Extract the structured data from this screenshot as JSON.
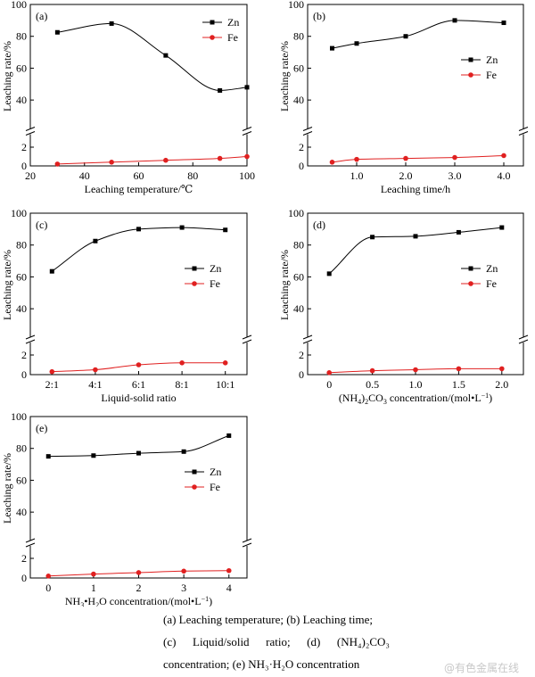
{
  "chart_data": [
    {
      "type": "line",
      "panel_label": "(a)",
      "xlabel": "Leaching temperature/℃",
      "ylabel": "Leaching rate/%",
      "xlim": [
        20,
        100
      ],
      "x_ticks": [
        20,
        40,
        60,
        80,
        100
      ],
      "x_tick_labels": [
        "20",
        "40",
        "60",
        "80",
        "100"
      ],
      "y_lower_ticks": [
        0,
        2
      ],
      "y_upper_ticks": [
        40,
        60,
        80,
        100
      ],
      "y_upper_range": [
        30,
        100
      ],
      "legend_position": "top-right",
      "series": [
        {
          "name": "Zn",
          "color": "#000000",
          "marker": "square",
          "x": [
            30,
            50,
            70,
            90,
            100
          ],
          "y": [
            82.5,
            88,
            68,
            46,
            48
          ]
        },
        {
          "name": "Fe",
          "color": "#e02020",
          "marker": "circle",
          "x": [
            30,
            50,
            70,
            90,
            100
          ],
          "y": [
            0.2,
            0.4,
            0.6,
            0.8,
            1.0
          ]
        }
      ]
    },
    {
      "type": "line",
      "panel_label": "(b)",
      "xlabel": "Leaching time/h",
      "ylabel": "Leaching rate/%",
      "xlim": [
        0,
        4.4
      ],
      "x_ticks": [
        1,
        2,
        3,
        4
      ],
      "x_tick_labels": [
        "1.0",
        "2.0",
        "3.0",
        "4.0"
      ],
      "y_lower_ticks": [
        0,
        2
      ],
      "y_upper_ticks": [
        40,
        60,
        80,
        100
      ],
      "y_upper_range": [
        30,
        100
      ],
      "legend_position": "right",
      "series": [
        {
          "name": "Zn",
          "color": "#000000",
          "marker": "square",
          "x": [
            0.5,
            1,
            2,
            3,
            4
          ],
          "y": [
            72.5,
            75.5,
            80,
            90,
            88.5
          ]
        },
        {
          "name": "Fe",
          "color": "#e02020",
          "marker": "circle",
          "x": [
            0.5,
            1,
            2,
            3,
            4
          ],
          "y": [
            0.4,
            0.7,
            0.8,
            0.9,
            1.1
          ]
        }
      ]
    },
    {
      "type": "line",
      "panel_label": "(c)",
      "xlabel": "Liquid-solid ratio",
      "ylabel": "Leaching rate/%",
      "xlim": [
        0.5,
        5.5
      ],
      "x_ticks": [
        1,
        2,
        3,
        4,
        5
      ],
      "x_tick_labels": [
        "2:1",
        "4:1",
        "6:1",
        "8:1",
        "10:1"
      ],
      "y_lower_ticks": [
        0,
        2
      ],
      "y_upper_ticks": [
        40,
        60,
        80,
        100
      ],
      "y_upper_range": [
        30,
        100
      ],
      "legend_position": "right",
      "series": [
        {
          "name": "Zn",
          "color": "#000000",
          "marker": "square",
          "x": [
            1,
            2,
            3,
            4,
            5
          ],
          "y": [
            63.5,
            82.5,
            90,
            91,
            89.5
          ]
        },
        {
          "name": "Fe",
          "color": "#e02020",
          "marker": "circle",
          "x": [
            1,
            2,
            3,
            4,
            5
          ],
          "y": [
            0.3,
            0.5,
            1.0,
            1.2,
            1.2
          ]
        }
      ]
    },
    {
      "type": "line",
      "panel_label": "(d)",
      "xlabel_parts": [
        "(NH",
        "4",
        ")",
        "2",
        "CO",
        "3",
        " concentration/(mol•L",
        "−1",
        ")"
      ],
      "ylabel": "Leaching rate/%",
      "xlim": [
        -0.25,
        2.25
      ],
      "x_ticks": [
        0,
        0.5,
        1,
        1.5,
        2
      ],
      "x_tick_labels": [
        "0",
        "0.5",
        "1.0",
        "1.5",
        "2.0"
      ],
      "y_lower_ticks": [
        0,
        2
      ],
      "y_upper_ticks": [
        40,
        60,
        80,
        100
      ],
      "y_upper_range": [
        30,
        100
      ],
      "legend_position": "right",
      "series": [
        {
          "name": "Zn",
          "color": "#000000",
          "marker": "square",
          "x": [
            0,
            0.5,
            1,
            1.5,
            2
          ],
          "y": [
            62,
            85,
            85.5,
            88,
            91
          ]
        },
        {
          "name": "Fe",
          "color": "#e02020",
          "marker": "circle",
          "x": [
            0,
            0.5,
            1,
            1.5,
            2
          ],
          "y": [
            0.2,
            0.4,
            0.5,
            0.6,
            0.6
          ]
        }
      ]
    },
    {
      "type": "line",
      "panel_label": "(e)",
      "xlabel_parts": [
        "NH",
        "3",
        "•H",
        "2",
        "O concentration/(mol•L",
        "−1",
        ")"
      ],
      "ylabel": "Leaching rate/%",
      "xlim": [
        -0.4,
        4.4
      ],
      "x_ticks": [
        0,
        1,
        2,
        3,
        4
      ],
      "x_tick_labels": [
        "0",
        "1",
        "2",
        "3",
        "4"
      ],
      "y_lower_ticks": [
        0,
        2
      ],
      "y_upper_ticks": [
        40,
        60,
        80,
        100
      ],
      "y_upper_range": [
        30,
        100
      ],
      "legend_position": "right",
      "series": [
        {
          "name": "Zn",
          "color": "#000000",
          "marker": "square",
          "x": [
            0,
            1,
            2,
            3,
            4
          ],
          "y": [
            75,
            75.5,
            77,
            78,
            88
          ]
        },
        {
          "name": "Fe",
          "color": "#e02020",
          "marker": "circle",
          "x": [
            0,
            1,
            2,
            3,
            4
          ],
          "y": [
            0.2,
            0.4,
            0.55,
            0.7,
            0.75
          ]
        }
      ]
    }
  ],
  "caption": {
    "line1": "(a) Leaching temperature; (b) Leaching time;",
    "line2_words": [
      "(c)",
      "Liquid/solid",
      "ratio;",
      "(d)",
      "(NH₄)₂CO₃"
    ],
    "line3": "concentration; (e) NH₃·H₂O concentration"
  },
  "watermark": "@有色金属在线"
}
